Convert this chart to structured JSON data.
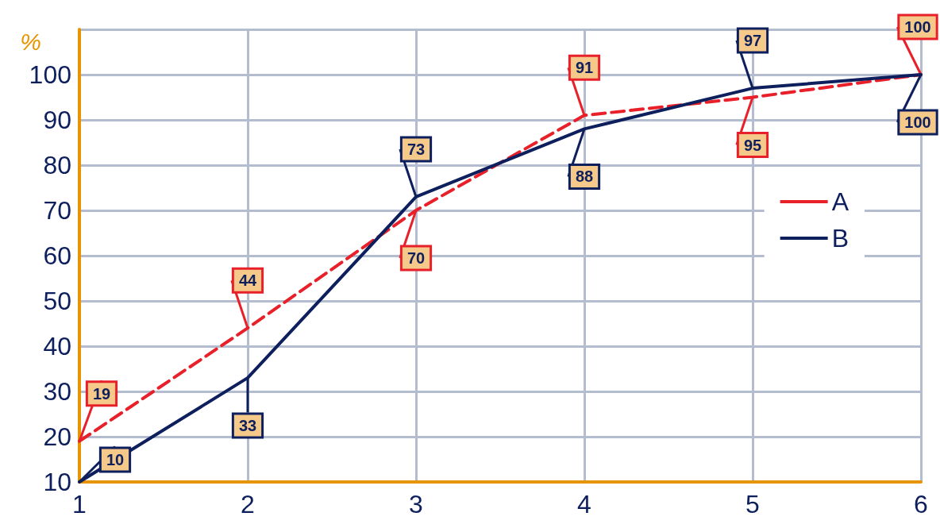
{
  "chart_data": {
    "type": "line",
    "ylabel": "%",
    "x": [
      1,
      2,
      3,
      4,
      5,
      6
    ],
    "series": [
      {
        "name": "A",
        "color": "#e8202a",
        "line_style": "dashed",
        "values": [
          19,
          44,
          70,
          91,
          95,
          100
        ]
      },
      {
        "name": "B",
        "color": "#0d1f5c",
        "line_style": "solid",
        "values": [
          10,
          33,
          73,
          88,
          97,
          100
        ]
      }
    ],
    "xlim": [
      1,
      6
    ],
    "xticks": [
      1,
      2,
      3,
      4,
      5,
      6
    ],
    "ylim": [
      10,
      110
    ],
    "yticks": [
      10,
      20,
      30,
      40,
      50,
      60,
      70,
      80,
      90,
      100,
      {
        "value": 110,
        "label": null
      }
    ],
    "grid": true,
    "legend": "right",
    "marker": "none",
    "data_labels": true
  }
}
